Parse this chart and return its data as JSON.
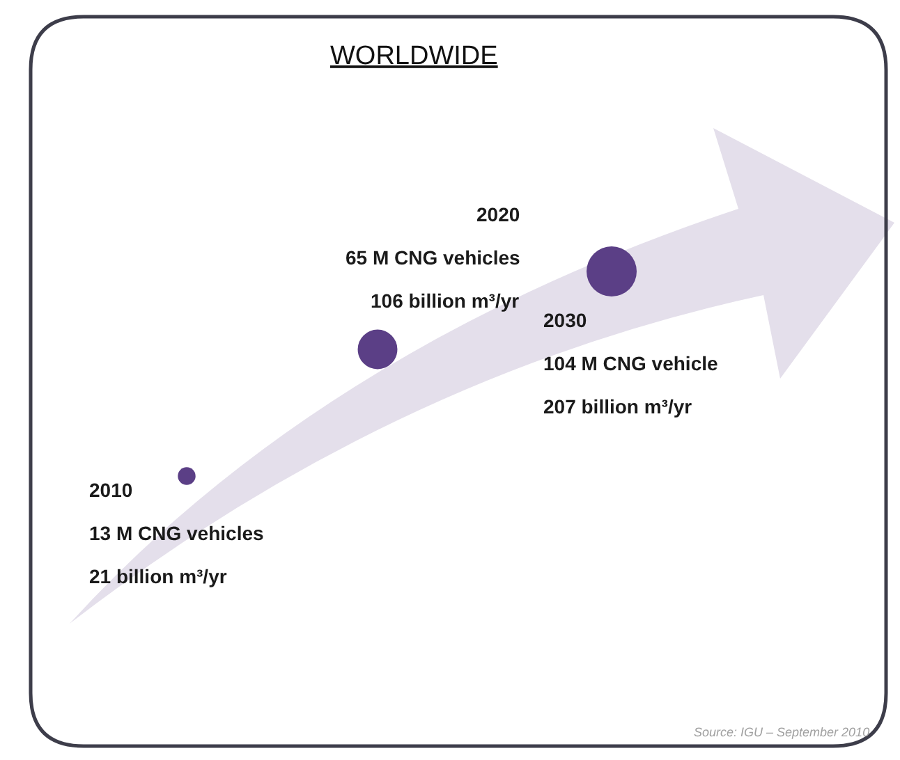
{
  "chart_data": {
    "type": "other",
    "title": "WORLDWIDE",
    "categories": [
      "2010",
      "2020",
      "2030"
    ],
    "series": [
      {
        "color": "#5b3f86",
        "values": [
          13,
          65,
          104
        ],
        "value_labels": [
          "13 M CNG vehicles",
          "65 M CNG vehicles",
          "104 M CNG vehicle"
        ]
      }
    ],
    "annotations": [
      "21 billion m³/yr",
      "106 billion m³/yr",
      "207 billion m³/yr",
      "Source: IGU – September 2010"
    ]
  }
}
